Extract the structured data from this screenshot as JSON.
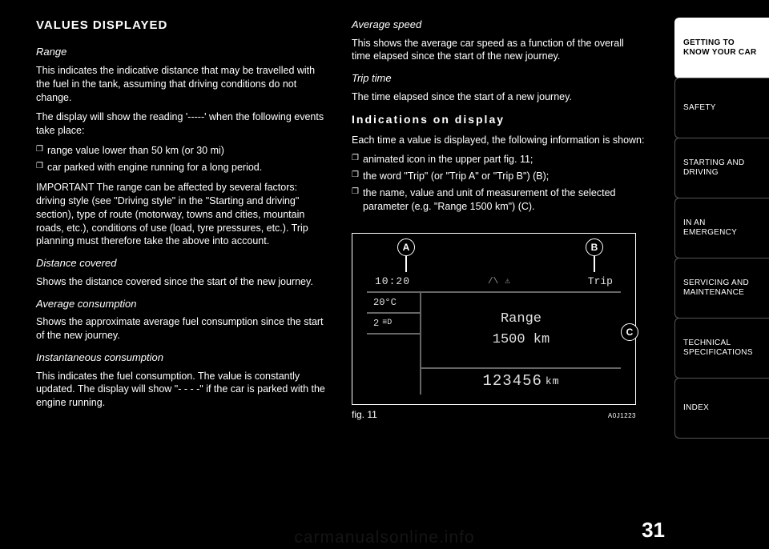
{
  "page_number": "31",
  "watermark": "carmanualsonline.info",
  "tabs": [
    {
      "label": "GETTING TO\nKNOW YOUR CAR",
      "active": true
    },
    {
      "label": "SAFETY",
      "active": false
    },
    {
      "label": "STARTING AND\nDRIVING",
      "active": false
    },
    {
      "label": "IN AN EMERGENCY",
      "active": false
    },
    {
      "label": "SERVICING AND\nMAINTENANCE",
      "active": false
    },
    {
      "label": "TECHNICAL\nSPECIFICATIONS",
      "active": false
    },
    {
      "label": "INDEX",
      "active": false
    }
  ],
  "left": {
    "heading": "VALUES DISPLAYED",
    "range_h": "Range",
    "range_p1": "This indicates the indicative distance that may be travelled with the fuel in the tank, assuming that driving conditions do not change.",
    "range_p2": "The display will show the reading '-----' when the following events take place:",
    "range_li1": "range value lower than 50 km (or 30 mi)",
    "range_li2": "car parked with engine running for a long period.",
    "range_imp": "IMPORTANT The range can be affected by several factors: driving style (see \"Driving style\" in the \"Starting and driving\" section), type of route (motorway, towns and cities, mountain roads, etc.), conditions of use (load, tyre pressures, etc.). Trip planning must therefore take the above into account.",
    "dist_h": "Distance covered",
    "dist_p": "Shows the distance covered since the start of the new journey.",
    "avgc_h": "Average consumption",
    "avgc_p": "Shows the approximate average fuel consumption since the start of the new journey.",
    "inst_h": "Instantaneous consumption",
    "inst_p": "This indicates the fuel consumption. The value is constantly updated. The display will show \"- - - -\" if the car is parked with the engine running."
  },
  "right": {
    "avgs_h": "Average speed",
    "avgs_p": "This shows the average car speed as a function of the overall time elapsed since the start of the new journey.",
    "trip_h": "Trip time",
    "trip_p": "The time elapsed since the start of a new journey.",
    "ind_h": "Indications on display",
    "ind_p": "Each time a value is displayed, the following information is shown:",
    "ind_li1": "animated icon in the upper part fig. 11;",
    "ind_li2": "the word \"Trip\" (or \"Trip A\" or \"Trip B\") (B);",
    "ind_li3": "the name, value and unit of measurement of the selected parameter (e.g. \"Range 1500 km\") (C)."
  },
  "figure": {
    "caption": "fig. 11",
    "code": "A0J1223",
    "callouts": {
      "a": "A",
      "b": "B",
      "c": "C"
    },
    "screen": {
      "time": "10:20",
      "trip_label": "Trip",
      "temp": "20°C",
      "gear": "2",
      "range_label": "Range",
      "range_value": "1500 km",
      "odometer": "123456",
      "odometer_unit": "km"
    }
  }
}
